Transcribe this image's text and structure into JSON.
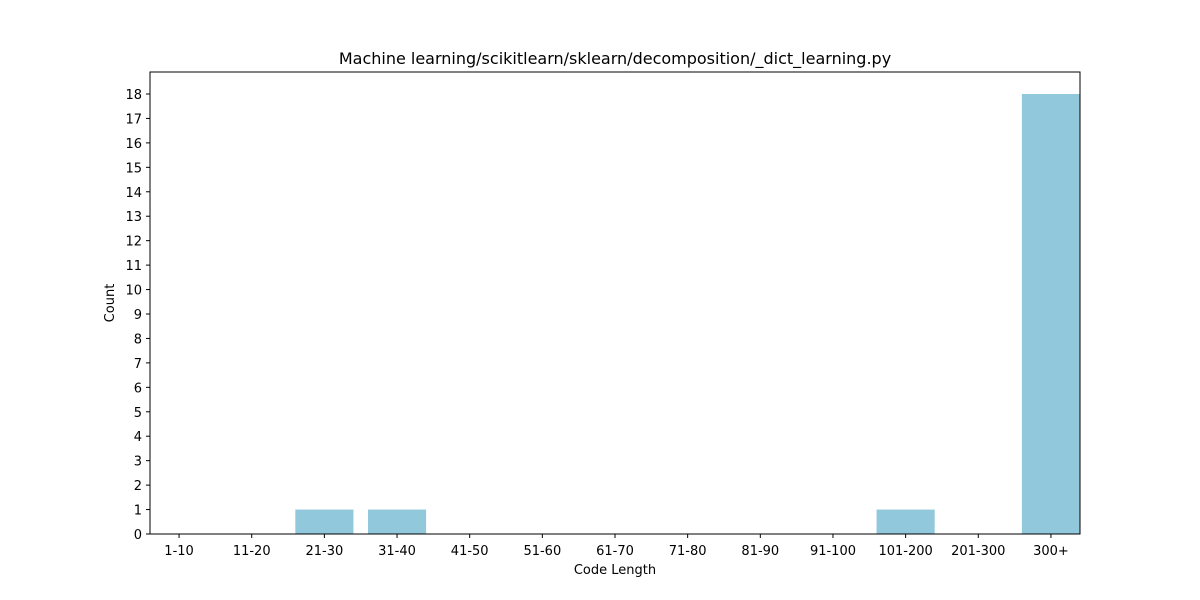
{
  "chart_data": {
    "type": "bar",
    "title": "Machine learning/scikitlearn/sklearn/decomposition/_dict_learning.py",
    "xlabel": "Code Length",
    "ylabel": "Count",
    "categories": [
      "1-10",
      "11-20",
      "21-30",
      "31-40",
      "41-50",
      "51-60",
      "61-70",
      "71-80",
      "81-90",
      "91-100",
      "101-200",
      "201-300",
      "300+"
    ],
    "values": [
      0,
      0,
      1,
      1,
      0,
      0,
      0,
      0,
      0,
      0,
      1,
      0,
      18
    ],
    "ylim": [
      0,
      18.9
    ],
    "yticks": [
      0,
      1,
      2,
      3,
      4,
      5,
      6,
      7,
      8,
      9,
      10,
      11,
      12,
      13,
      14,
      15,
      16,
      17,
      18
    ],
    "grid": false,
    "bar_color": "#92c8dc"
  }
}
